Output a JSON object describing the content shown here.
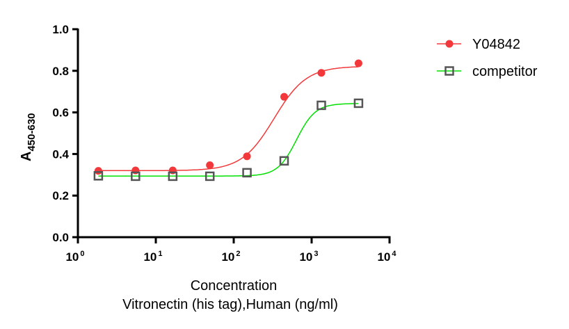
{
  "chart_data": {
    "type": "scatter",
    "title": "",
    "xlabel": "Concentration",
    "xlabel_line2": "Vitronectin (his tag),Human (ng/ml)",
    "ylabel": "A",
    "ylabel_subscript": "450-630",
    "xscale": "log",
    "xlim": [
      1,
      10000
    ],
    "ylim": [
      0,
      1.0
    ],
    "xticks": [
      {
        "base": "10",
        "exp": "0",
        "value": 1
      },
      {
        "base": "10",
        "exp": "1",
        "value": 10
      },
      {
        "base": "10",
        "exp": "2",
        "value": 100
      },
      {
        "base": "10",
        "exp": "3",
        "value": 1000
      },
      {
        "base": "10",
        "exp": "4",
        "value": 10000
      }
    ],
    "yticks": [
      "0.0",
      "0.2",
      "0.4",
      "0.6",
      "0.8",
      "1.0"
    ],
    "grid": false,
    "legend_position": "top-right",
    "x": [
      1.83,
      5.49,
      16.5,
      49.4,
      148,
      444,
      1333,
      4000
    ],
    "series": [
      {
        "name": "Y04842",
        "color": "#f2383a",
        "marker": "filled-circle",
        "values": [
          0.319,
          0.321,
          0.321,
          0.346,
          0.389,
          0.675,
          0.79,
          0.836
        ],
        "fit": {
          "bottom": 0.32,
          "top": 0.822,
          "ec50": 330,
          "hill": 2.1
        }
      },
      {
        "name": "competitor",
        "color": "#00e000",
        "marker": "open-square",
        "marker_color": "#555555",
        "values": [
          0.295,
          0.293,
          0.293,
          0.293,
          0.31,
          0.367,
          0.634,
          0.644
        ],
        "fit": {
          "bottom": 0.294,
          "top": 0.643,
          "ec50": 640,
          "hill": 3.6
        }
      }
    ]
  }
}
